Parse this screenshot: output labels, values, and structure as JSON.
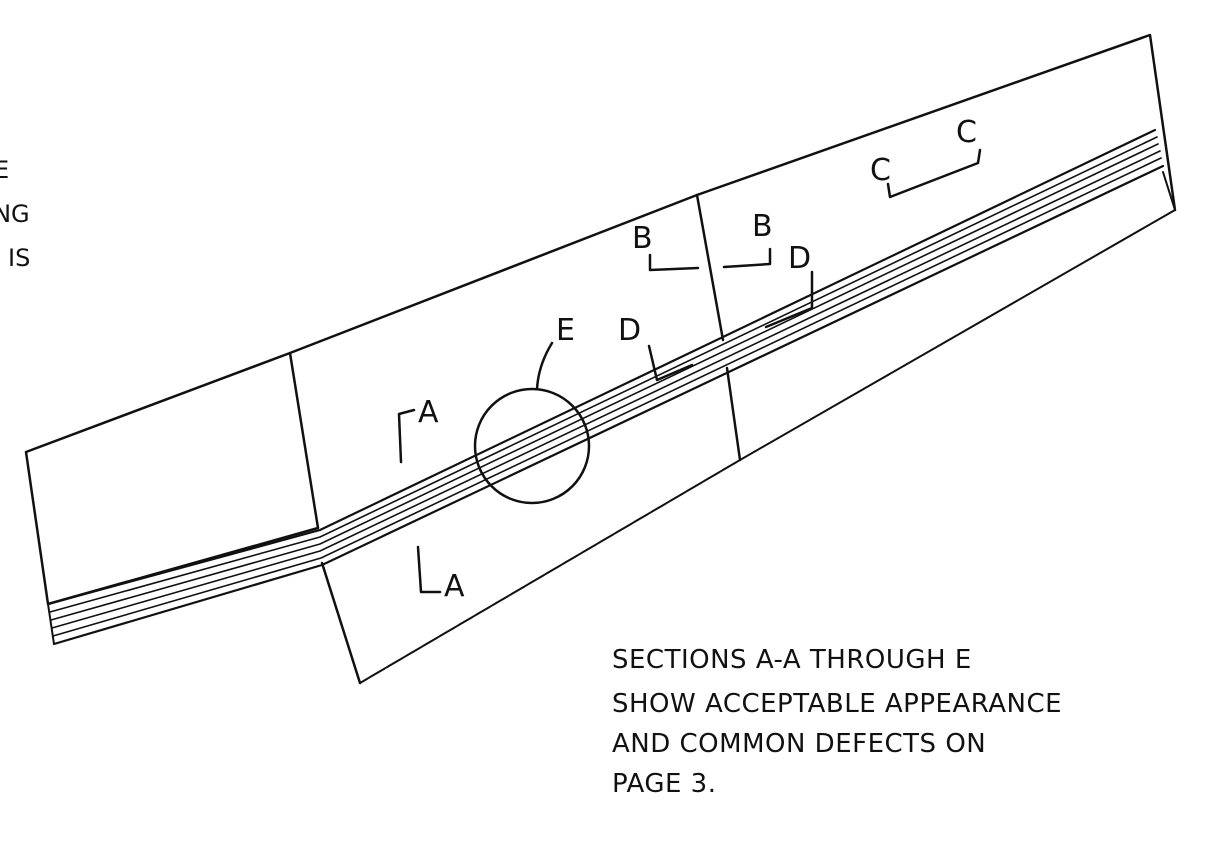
{
  "edge_text_lines": [
    "E",
    "ING",
    "IS"
  ],
  "labels": {
    "a_top": "A",
    "a_bottom": "A",
    "b_left": "B",
    "b_right": "B",
    "c_left": "C",
    "c_right": "C",
    "d_left": "D",
    "d_right": "D",
    "e": "E"
  },
  "note_lines": [
    "SECTIONS A-A THROUGH E",
    "SHOW ACCEPTABLE APPEARANCE",
    "AND COMMON DEFECTS ON",
    "PAGE 3."
  ]
}
